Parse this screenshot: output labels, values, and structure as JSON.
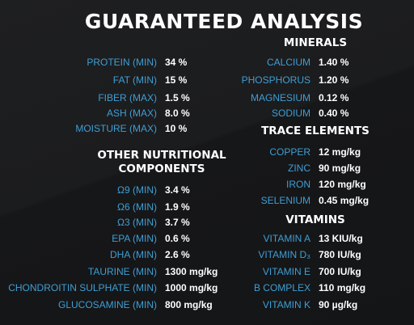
{
  "title": "GUARANTEED ANALYSIS",
  "analysis": [
    {
      "label": "PROTEIN (MIN)",
      "value": "34 %"
    },
    {
      "label": "FAT (MIN)",
      "value": "15 %"
    },
    {
      "label": "FIBER (MAX)",
      "value": "1.5 %"
    },
    {
      "label": "ASH (MAX)",
      "value": "8.0 %"
    },
    {
      "label": "MOISTURE (MAX)",
      "value": "10 %"
    }
  ],
  "other_heading_line1": "OTHER NUTRITIONAL",
  "other_heading_line2": "COMPONENTS",
  "other": [
    {
      "label": "Ω9 (MIN)",
      "value": "3.4 %"
    },
    {
      "label": "Ω6 (MIN)",
      "value": "1.9 %"
    },
    {
      "label": "Ω3 (MIN)",
      "value": "3.7 %"
    },
    {
      "label": "EPA (MIN)",
      "value": "0.6 %"
    },
    {
      "label": "DHA (MIN)",
      "value": "2.6 %"
    },
    {
      "label": "TAURINE (MIN)",
      "value": "1300 mg/kg"
    },
    {
      "label": "CHONDROITIN SULPHATE (MIN)",
      "value": "1000 mg/kg"
    },
    {
      "label": "GLUCOSAMINE (MIN)",
      "value": "800 mg/kg"
    }
  ],
  "minerals_heading": "MINERALS",
  "minerals": [
    {
      "label": "CALCIUM",
      "value": "1.40 %"
    },
    {
      "label": "PHOSPHORUS",
      "value": "1.20 %"
    },
    {
      "label": "MAGNESIUM",
      "value": "0.12 %"
    },
    {
      "label": "SODIUM",
      "value": "0.40 %"
    }
  ],
  "trace_heading": "TRACE ELEMENTS",
  "trace": [
    {
      "label": "COPPER",
      "value": "12 mg/kg"
    },
    {
      "label": "ZINC",
      "value": "90 mg/kg"
    },
    {
      "label": "IRON",
      "value": "120 mg/kg"
    },
    {
      "label": "SELENIUM",
      "value": "0.45 mg/kg"
    }
  ],
  "vitamins_heading": "VITAMINS",
  "vitamins": [
    {
      "label": "VITAMIN A",
      "value": "13 KIU/kg"
    },
    {
      "label": "VITAMIN D₃",
      "value": "780 IU/kg"
    },
    {
      "label": "VITAMIN E",
      "value": "700 IU/kg"
    },
    {
      "label": "B COMPLEX",
      "value": "110 mg/kg"
    },
    {
      "label": "VITAMIN K",
      "value": "90 µg/kg"
    }
  ],
  "colors": {
    "background": "#1b1c1e",
    "label": "#3f9ed4",
    "value": "#ffffff"
  }
}
